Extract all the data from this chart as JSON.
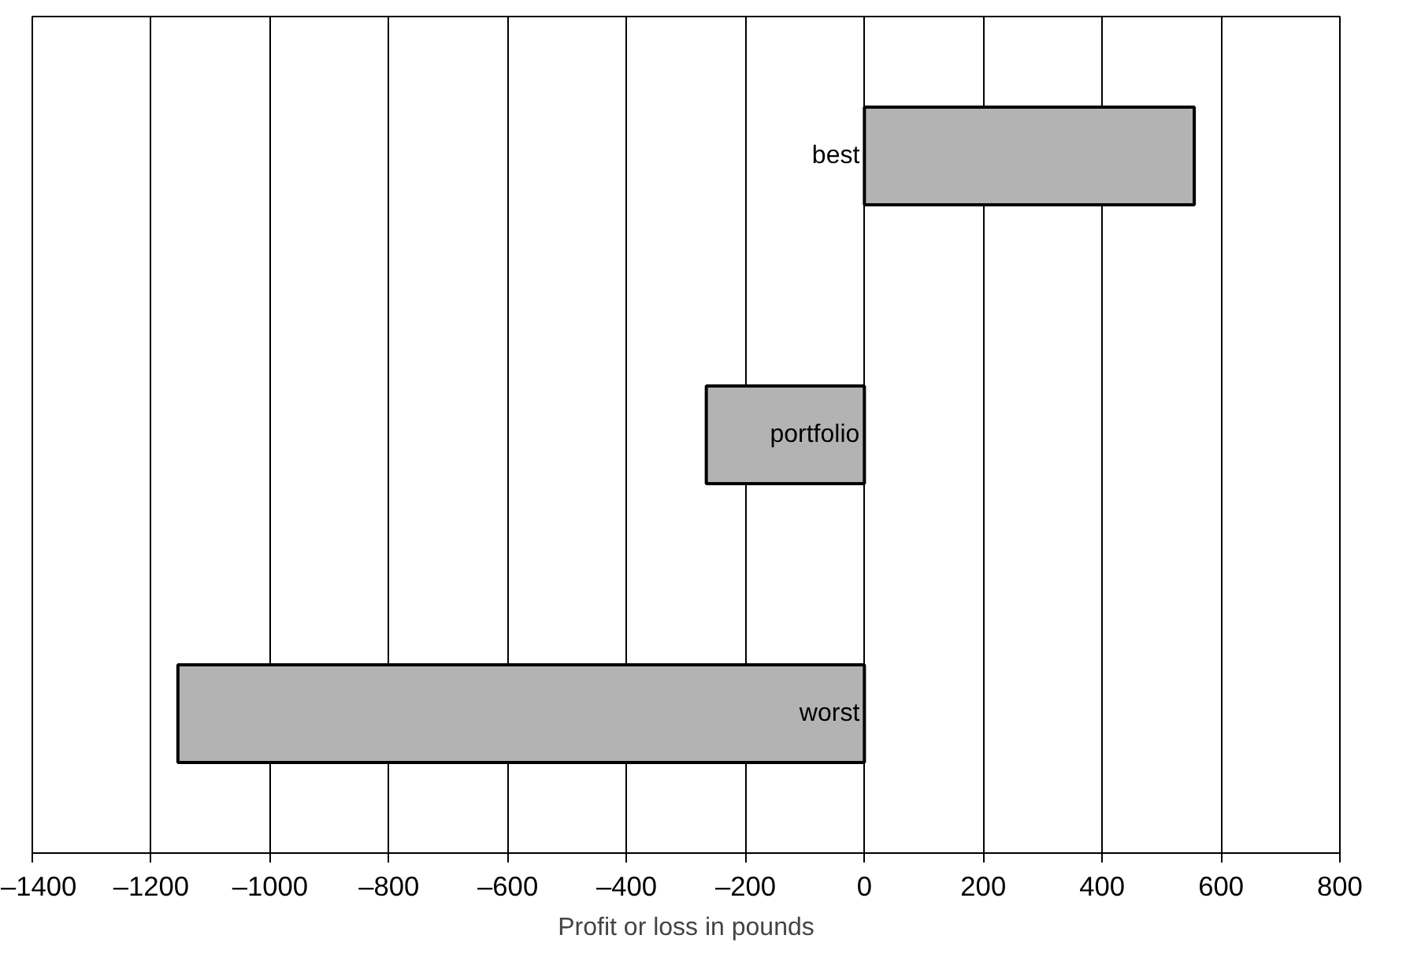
{
  "chart_data": {
    "type": "bar",
    "orientation": "horizontal",
    "xlabel": "Profit or loss in pounds",
    "categories": [
      "best",
      "portfolio",
      "worst"
    ],
    "values": [
      555,
      -266,
      -1155
    ],
    "color": "#b3b3b3",
    "xlim": [
      -1400,
      800
    ],
    "xticks": [
      {
        "value": -1400,
        "label": "–1400"
      },
      {
        "value": -1200,
        "label": "–1200"
      },
      {
        "value": -1000,
        "label": "–1000"
      },
      {
        "value": -800,
        "label": "–800"
      },
      {
        "value": -600,
        "label": "–600"
      },
      {
        "value": -400,
        "label": "–400"
      },
      {
        "value": -200,
        "label": "–200"
      },
      0,
      200,
      400,
      600,
      800
    ],
    "grid": "x"
  }
}
